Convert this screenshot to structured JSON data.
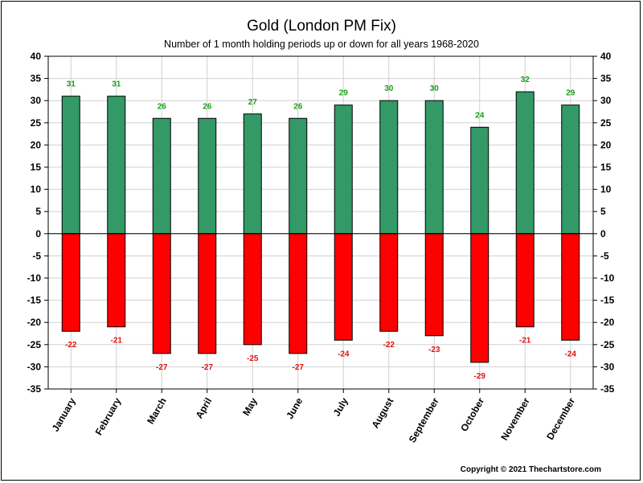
{
  "chart_data": {
    "type": "bar",
    "title": "Gold (London PM Fix)",
    "subtitle": "Number of 1 month holding periods up or down for all years 1968-2020",
    "categories": [
      "January",
      "February",
      "March",
      "April",
      "May",
      "June",
      "July",
      "August",
      "September",
      "October",
      "November",
      "December"
    ],
    "series": [
      {
        "values": [
          31,
          31,
          26,
          26,
          27,
          26,
          29,
          30,
          30,
          24,
          32,
          29
        ],
        "color": "#339966"
      },
      {
        "values": [
          -22,
          -21,
          -27,
          -27,
          -25,
          -27,
          -24,
          -22,
          -23,
          -29,
          -21,
          -24
        ],
        "color": "#ff0000"
      }
    ],
    "ylim": [
      -35,
      40
    ],
    "yticks": [
      40,
      35,
      30,
      25,
      20,
      15,
      10,
      5,
      0,
      -5,
      -10,
      -15,
      -20,
      -25,
      -30,
      -35
    ],
    "grid": true,
    "label_colors": {
      "up": "#1a9e1a",
      "down": "#e01010"
    }
  },
  "footer": {
    "copyright": "Copyright © 2021 Thechartstore.com"
  }
}
